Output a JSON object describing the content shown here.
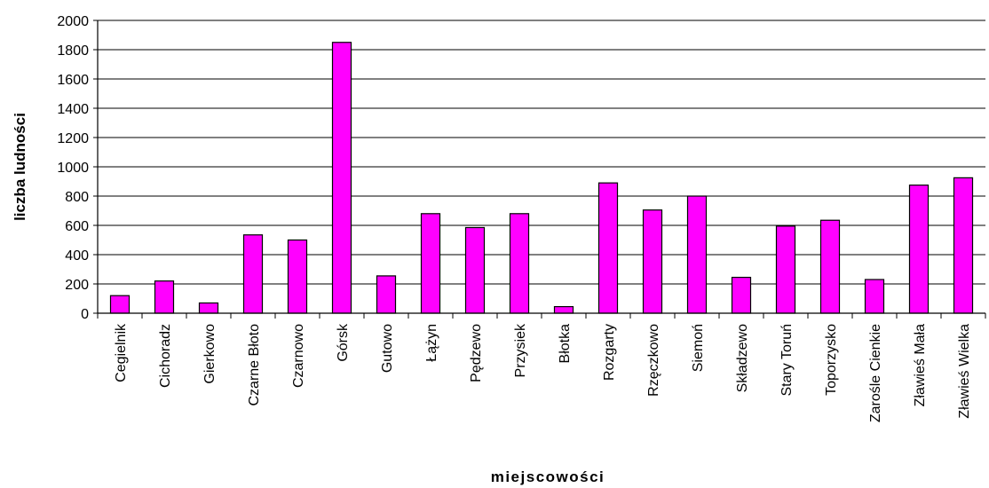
{
  "chart_data": {
    "type": "bar",
    "title": "",
    "xlabel": "miejscowości",
    "ylabel": "liczba ludności",
    "ylim": [
      0,
      2000
    ],
    "yticks": [
      0,
      200,
      400,
      600,
      800,
      1000,
      1200,
      1400,
      1600,
      1800,
      2000
    ],
    "grid": true,
    "legend": "none",
    "bar_color": "#ff00ff",
    "categories": [
      "Cegielnik",
      "Cichoradz",
      "Gierkowo",
      "Czarne Błoto",
      "Czarnowo",
      "Górsk",
      "Gutowo",
      "Łążyn",
      "Pędzewo",
      "Przysiek",
      "Błotka",
      "Rozgarty",
      "Rzęczkowo",
      "Siemoń",
      "Składzewo",
      "Stary Toruń",
      "Toporzysko",
      "Zarośle Cienkie",
      "Zławieś Mała",
      "Zławieś Wielka"
    ],
    "values": [
      120,
      220,
      70,
      535,
      500,
      1850,
      255,
      680,
      585,
      680,
      45,
      890,
      705,
      800,
      245,
      595,
      635,
      230,
      875,
      925
    ]
  }
}
